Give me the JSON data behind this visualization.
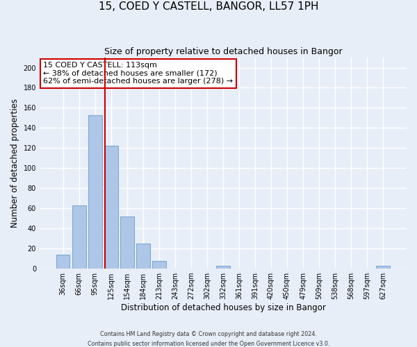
{
  "title": "15, COED Y CASTELL, BANGOR, LL57 1PH",
  "subtitle": "Size of property relative to detached houses in Bangor",
  "xlabel": "Distribution of detached houses by size in Bangor",
  "ylabel": "Number of detached properties",
  "bar_labels": [
    "36sqm",
    "66sqm",
    "95sqm",
    "125sqm",
    "154sqm",
    "184sqm",
    "213sqm",
    "243sqm",
    "272sqm",
    "302sqm",
    "332sqm",
    "361sqm",
    "391sqm",
    "420sqm",
    "450sqm",
    "479sqm",
    "509sqm",
    "538sqm",
    "568sqm",
    "597sqm",
    "627sqm"
  ],
  "bar_values": [
    14,
    63,
    153,
    122,
    52,
    25,
    8,
    0,
    0,
    0,
    3,
    0,
    0,
    0,
    0,
    0,
    0,
    0,
    0,
    0,
    3
  ],
  "bar_color": "#aec6e8",
  "bar_edgecolor": "#7aaad0",
  "vline_x": 2.62,
  "vline_color": "#cc0000",
  "annotation_title": "15 COED Y CASTELL: 113sqm",
  "annotation_line1": "← 38% of detached houses are smaller (172)",
  "annotation_line2": "62% of semi-detached houses are larger (278) →",
  "annotation_box_edgecolor": "#cc0000",
  "ylim": [
    0,
    210
  ],
  "yticks": [
    0,
    20,
    40,
    60,
    80,
    100,
    120,
    140,
    160,
    180,
    200
  ],
  "footer1": "Contains HM Land Registry data © Crown copyright and database right 2024.",
  "footer2": "Contains public sector information licensed under the Open Government Licence v3.0.",
  "bg_color": "#e8eef8",
  "plot_bg_color": "#e8eef8",
  "grid_color": "#ffffff"
}
